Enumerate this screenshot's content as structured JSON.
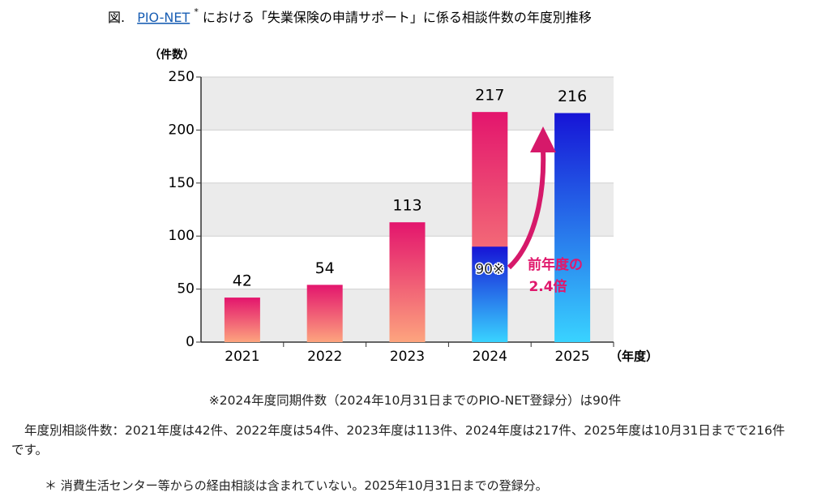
{
  "chart_data": {
    "type": "bar",
    "title_prefix": "図.",
    "title_link": "PIO-NET",
    "title_mark": "*",
    "title_rest": "における「失業保険の申請サポート」に係る相談件数の年度別推移",
    "ylabel": "（件数）",
    "xlabel": "（年度）",
    "categories": [
      "2021",
      "2022",
      "2023",
      "2024",
      "2025"
    ],
    "values": [
      42,
      54,
      113,
      217,
      216
    ],
    "bar_styles": [
      "pink",
      "pink",
      "pink",
      "pink",
      "blue"
    ],
    "gradients": {
      "pink": [
        "#e3156d",
        "#fda47e"
      ],
      "blue": [
        "#1614d6",
        "#39d3ff"
      ]
    },
    "same_period": {
      "category": "2024",
      "value": 90,
      "label": "90※",
      "style": "blue"
    },
    "annotation": [
      "前年度の",
      "2.4倍"
    ],
    "annotation_color": "#e0186c",
    "ylim": [
      0,
      250
    ],
    "yticks": [
      0,
      50,
      100,
      150,
      200,
      250
    ],
    "grid": true,
    "grid_bands": true
  },
  "notes": {
    "same_period_note": "※2024年度同期件数（2024年10月31日までのPIO-NET登録分）は90件",
    "summary": "年度別相談件数：2021年度は42件、2022年度は54件、2023年度は113件、2024年度は217件、2025年度は10月31日までで216件です。",
    "footnote": "＊ 消費生活センター等からの経由相談は含まれていない。2025年10月31日までの登録分。"
  }
}
